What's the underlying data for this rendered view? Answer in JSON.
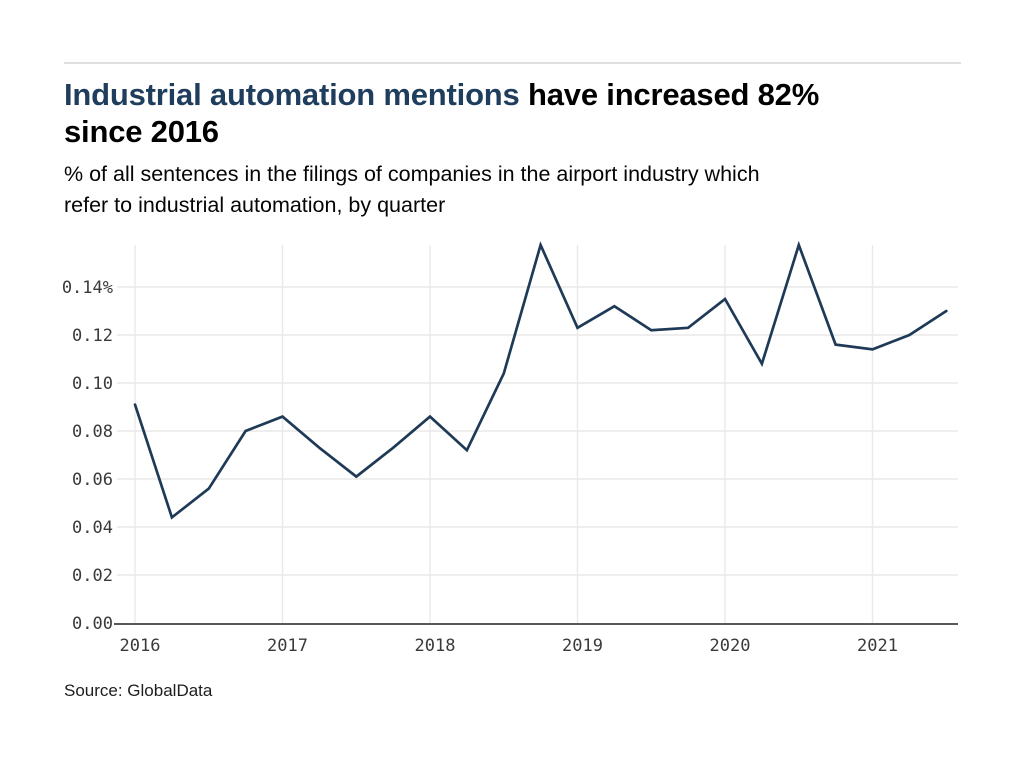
{
  "page": {
    "title_line1_highlight": "Industrial automation mentions",
    "title_line1_rest": " have increased 82%",
    "title_line2": "since 2016",
    "subtitle_lines": [
      "% of all sentences in the filings of companies in the airport industry which",
      "refer to industrial automation, by quarter"
    ],
    "source": "Source: GlobalData"
  },
  "colors": {
    "title_highlight": "#1f3d5d",
    "title_rest": "#000000",
    "line": "#1f3a56",
    "gridline": "#e9e9e9",
    "axis_line": "#58585a",
    "axis_label": "#3a3a3a",
    "divider": "#dfdfdf",
    "background": "#ffffff"
  },
  "chart_data": {
    "type": "line",
    "title": "Industrial automation mentions have increased 82% since 2016",
    "subtitle": "% of all sentences in the filings of companies in the airport industry which refer to industrial automation, by quarter",
    "unit": "%",
    "grid": true,
    "legend": "none",
    "x": [
      "2016 Q1",
      "2016 Q2",
      "2016 Q3",
      "2016 Q4",
      "2017 Q1",
      "2017 Q2",
      "2017 Q3",
      "2017 Q4",
      "2018 Q1",
      "2018 Q2",
      "2018 Q3",
      "2018 Q4",
      "2019 Q1",
      "2019 Q2",
      "2019 Q3",
      "2019 Q4",
      "2020 Q1",
      "2020 Q2",
      "2020 Q3",
      "2020 Q4",
      "2021 Q1",
      "2021 Q2",
      "2021 Q3"
    ],
    "values": [
      0.091,
      0.044,
      0.056,
      0.08,
      0.086,
      0.073,
      0.061,
      0.073,
      0.086,
      0.072,
      0.104,
      0.1575,
      0.123,
      0.132,
      0.122,
      0.123,
      0.135,
      0.108,
      0.1575,
      0.116,
      0.114,
      0.12,
      0.13
    ],
    "x_tick_labels": [
      "2016",
      "2017",
      "2018",
      "2019",
      "2020",
      "2021"
    ],
    "y_tick_values": [
      0.0,
      0.02,
      0.04,
      0.06,
      0.08,
      0.1,
      0.12,
      0.14
    ],
    "y_tick_labels": [
      "0.00",
      "0.02",
      "0.04",
      "0.06",
      "0.08",
      "0.10",
      "0.12",
      "0.14%"
    ],
    "ylim": [
      0,
      0.1575
    ],
    "xlabel": "",
    "ylabel": ""
  }
}
